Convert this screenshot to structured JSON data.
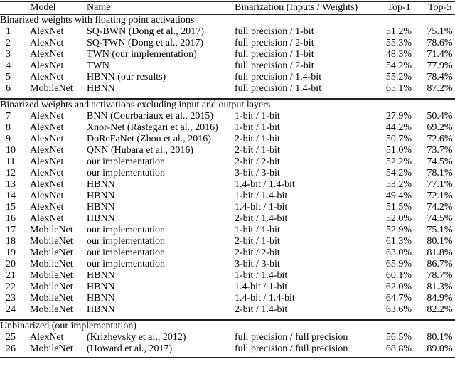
{
  "table": {
    "columns": [
      "",
      "Model",
      "Name",
      "Binarization (Inputs / Weights)",
      "Top-1",
      "Top-5"
    ],
    "sections": [
      {
        "title": "Binarized weights with floating point activations",
        "rows": [
          [
            "1",
            "AlexNet",
            "SQ-BWN (Dong et al., 2017)",
            "full precision / 1-bit",
            "51.2%",
            "75.1%"
          ],
          [
            "2",
            "AlexNet",
            "SQ-TWN (Dong et al., 2017)",
            "full precision / 2-bit",
            "55.3%",
            "78.6%"
          ],
          [
            "3",
            "AlexNet",
            "TWN (our implementation)",
            "full precision / 1-bit",
            "48.3%",
            "71.4%"
          ],
          [
            "4",
            "AlexNet",
            "TWN",
            "full precision / 2-bit",
            "54.2%",
            "77.9%"
          ],
          [
            "5",
            "AlexNet",
            "HBNN (our results)",
            "full precision / 1.4-bit",
            "55.2%",
            "78.4%"
          ],
          [
            "6",
            "MobileNet",
            "HBNN",
            "full precision / 1.4-bit",
            "65.1%",
            "87.2%"
          ]
        ]
      },
      {
        "title": "Binarized weights and activations excluding input and output layers",
        "rows": [
          [
            "7",
            "AlexNet",
            "BNN (Courbariaux et al., 2015)",
            "1-bit / 1-bit",
            "27.9%",
            "50.4%"
          ],
          [
            "8",
            "AlexNet",
            "Xnor-Net (Rastegari et al., 2016)",
            "1-bit / 1-bit",
            "44.2%",
            "69.2%"
          ],
          [
            "9",
            "AlexNet",
            "DoReFaNet (Zhou et al., 2016)",
            "2-bit / 1-bit",
            "50.7%",
            "72.6%"
          ],
          [
            "10",
            "AlexNet",
            "QNN (Hubara et al., 2016)",
            "2-bit / 1-bit",
            "51.0%",
            "73.7%"
          ],
          [
            "11",
            "AlexNet",
            "our implementation",
            "2-bit / 2-bit",
            "52.2%",
            "74.5%"
          ],
          [
            "12",
            "AlexNet",
            "our implementation",
            "3-bit / 3-bit",
            "54.2%",
            "78.1%"
          ],
          [
            "13",
            "AlexNet",
            "HBNN",
            "1.4-bit / 1.4-bit",
            "53.2%",
            "77.1%"
          ],
          [
            "14",
            "AlexNet",
            "HBNN",
            "1-bit / 1.4-bit",
            "49.4%",
            "72.1%"
          ],
          [
            "15",
            "AlexNet",
            "HBNN",
            "1.4-bit / 1-bit",
            "51.5%",
            "74.2%"
          ],
          [
            "16",
            "AlexNet",
            "HBNN",
            "2-bit / 1.4-bit",
            "52.0%",
            "74.5%"
          ],
          [
            "17",
            "MobileNet",
            "our implementation",
            "1-bit / 1-bit",
            "52.9%",
            "75.1%"
          ],
          [
            "18",
            "MobileNet",
            "our implementation",
            "2-bit / 1-bit",
            "61.3%",
            "80.1%"
          ],
          [
            "19",
            "MobileNet",
            "our implementation",
            "2-bit / 2-bit",
            "63.0%",
            "81.8%"
          ],
          [
            "20",
            "MobileNet",
            "our implementation",
            "3-bit / 3-bit",
            "65.9%",
            "86.7%"
          ],
          [
            "21",
            "MobileNet",
            "HBNN",
            "1-bit / 1.4-bit",
            "60.1%",
            "78.7%"
          ],
          [
            "22",
            "MobileNet",
            "HBNN",
            "1.4-bit / 1-bit",
            "62.0%",
            "81.3%"
          ],
          [
            "23",
            "MobileNet",
            "HBNN",
            "1.4-bit / 1.4-bit",
            "64.7%",
            "84.9%"
          ],
          [
            "24",
            "MobileNet",
            "HBNN",
            "2-bit / 1.4-bit",
            "63.6%",
            "82.2%"
          ]
        ]
      },
      {
        "title": "Unbinarized (our implementation)",
        "rows": [
          [
            "25",
            "AlexNet",
            "(Krizhevsky et al., 2012)",
            "full precision / full precision",
            "56.5%",
            "80.1%"
          ],
          [
            "26",
            "MobileNet",
            "(Howard et al., 2017)",
            "full precision / full precision",
            "68.8%",
            "89.0%"
          ]
        ]
      }
    ],
    "rule_color": "#222222",
    "text_color": "#000000"
  }
}
